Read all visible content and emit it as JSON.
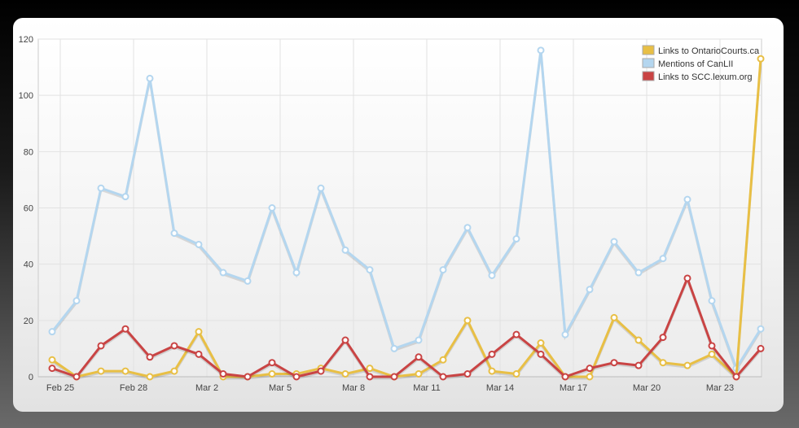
{
  "chart_data": {
    "type": "line",
    "title": "",
    "xlabel": "",
    "ylabel": "",
    "ylim": [
      0,
      120
    ],
    "yticks": [
      0,
      20,
      40,
      60,
      80,
      100,
      120
    ],
    "grid": true,
    "legend_placement": "top-right",
    "x": [
      "Feb 25",
      "Feb 26",
      "Feb 27",
      "Feb 28",
      "Feb 29",
      "Mar 1",
      "Mar 2",
      "Mar 3",
      "Mar 4",
      "Mar 5",
      "Mar 6",
      "Mar 7",
      "Mar 8",
      "Mar 9",
      "Mar 10",
      "Mar 11",
      "Mar 12",
      "Mar 13",
      "Mar 14",
      "Mar 15",
      "Mar 16",
      "Mar 17",
      "Mar 18",
      "Mar 19",
      "Mar 20",
      "Mar 21",
      "Mar 22",
      "Mar 23",
      "Mar 24",
      "Mar 25"
    ],
    "xtick_labels": [
      "Feb 25",
      "Feb 28",
      "Mar 2",
      "Mar 5",
      "Mar 8",
      "Mar 11",
      "Mar 14",
      "Mar 17",
      "Mar 20",
      "Mar 23"
    ],
    "series": [
      {
        "name": "Links to OntarioCourts.ca",
        "color": "#e8bf45",
        "values": [
          6,
          0,
          2,
          2,
          0,
          2,
          16,
          0,
          0,
          1,
          1,
          3,
          1,
          3,
          0,
          1,
          6,
          20,
          2,
          1,
          12,
          0,
          0,
          21,
          13,
          5,
          4,
          8,
          0,
          113
        ]
      },
      {
        "name": "Mentions of CanLII",
        "color": "#b4d6ef",
        "values": [
          16,
          27,
          67,
          64,
          106,
          51,
          47,
          37,
          34,
          60,
          37,
          67,
          45,
          38,
          10,
          13,
          38,
          53,
          36,
          49,
          116,
          15,
          31,
          48,
          37,
          42,
          63,
          27,
          3,
          17
        ]
      },
      {
        "name": "Links to SCC.lexum.org",
        "color": "#c94444",
        "values": [
          3,
          0,
          11,
          17,
          7,
          11,
          8,
          1,
          0,
          5,
          0,
          2,
          13,
          0,
          0,
          7,
          0,
          1,
          8,
          15,
          8,
          0,
          3,
          5,
          4,
          14,
          35,
          11,
          0,
          10
        ]
      }
    ]
  }
}
